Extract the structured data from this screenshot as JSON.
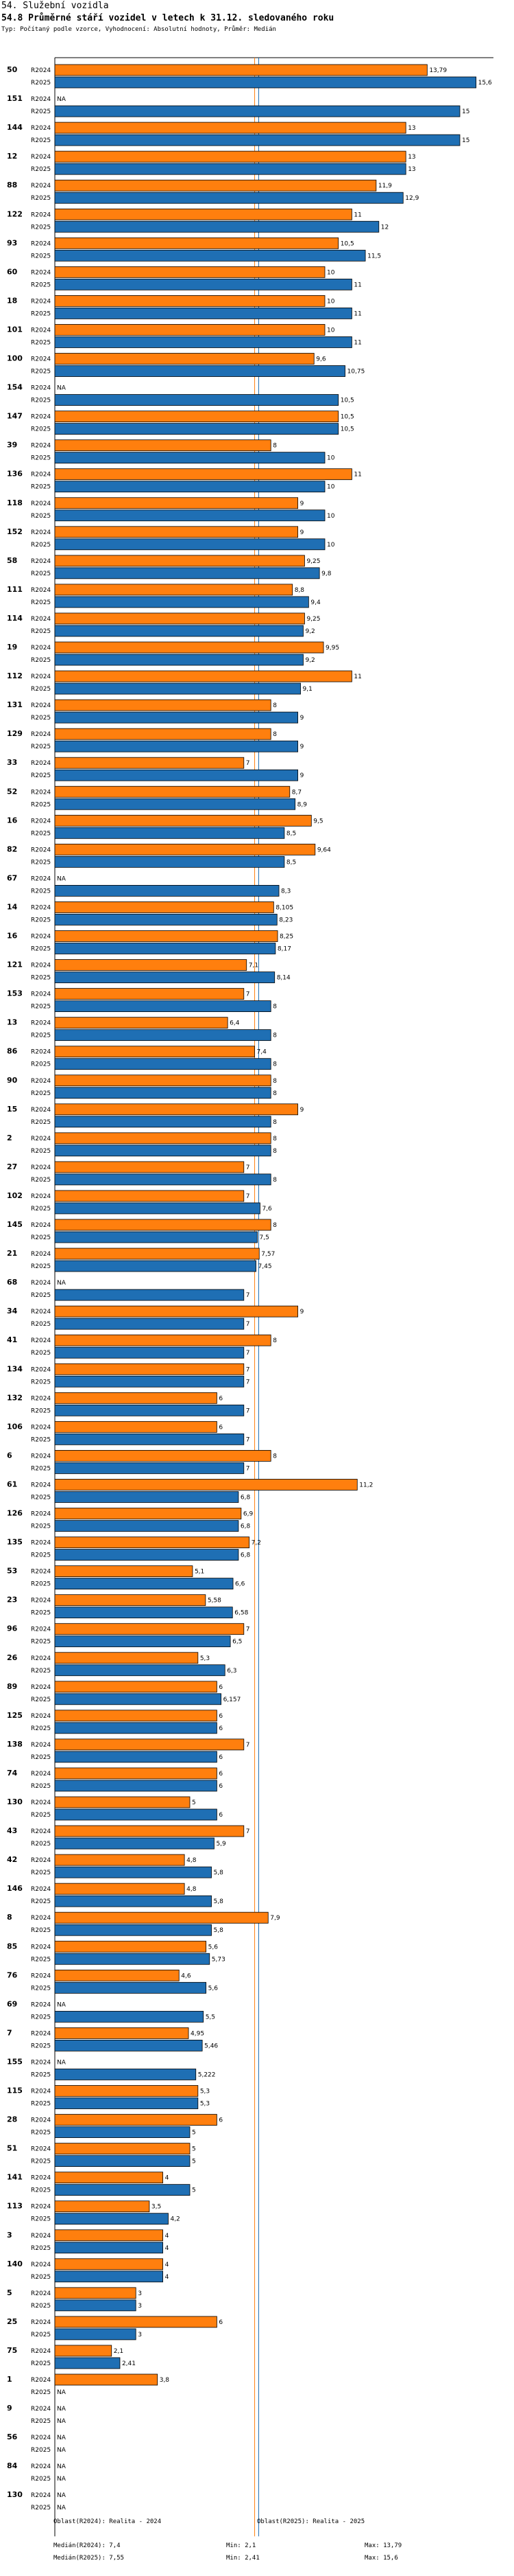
{
  "header": {
    "line1": "54. Služební vozidla",
    "line2": "54.8 Průměrné stáří vozidel v letech k 31.12. sledovaného roku",
    "line3": "Typ: Počítaný podle vzorce, Vyhodnocení: Absolutní hodnoty, Průměr: Medián"
  },
  "series_labels": {
    "a": "R2024",
    "b": "R2025"
  },
  "na_label": "NA",
  "colors": {
    "a": "#ff7f0e",
    "b": "#1f6fb4",
    "median_a": "#ff7f0e",
    "median_b": "#1f6fb4"
  },
  "chart_data": {
    "type": "bar",
    "orientation": "horizontal",
    "series": [
      {
        "name": "R2024"
      },
      {
        "name": "R2025"
      }
    ],
    "xlim": [
      0,
      16
    ],
    "medians": {
      "R2024": 7.4,
      "R2025": 7.55
    },
    "rows": [
      {
        "id": "50",
        "a": 13.79,
        "b": 15.6
      },
      {
        "id": "151",
        "a": null,
        "b": 15
      },
      {
        "id": "144",
        "a": 13,
        "b": 15
      },
      {
        "id": "12",
        "a": 13,
        "b": 13
      },
      {
        "id": "88",
        "a": 11.9,
        "b": 12.9
      },
      {
        "id": "122",
        "a": 11,
        "b": 12
      },
      {
        "id": "93",
        "a": 10.5,
        "b": 11.5
      },
      {
        "id": "60",
        "a": 10,
        "b": 11
      },
      {
        "id": "18",
        "a": 10,
        "b": 11
      },
      {
        "id": "101",
        "a": 10,
        "b": 11
      },
      {
        "id": "100",
        "a": 9.6,
        "b": 10.75
      },
      {
        "id": "154",
        "a": null,
        "b": 10.5
      },
      {
        "id": "147",
        "a": 10.5,
        "b": 10.5
      },
      {
        "id": "39",
        "a": 8,
        "b": 10
      },
      {
        "id": "136",
        "a": 11,
        "b": 10
      },
      {
        "id": "118",
        "a": 9,
        "b": 10
      },
      {
        "id": "152",
        "a": 9,
        "b": 10
      },
      {
        "id": "58",
        "a": 9.25,
        "b": 9.8
      },
      {
        "id": "111",
        "a": 8.8,
        "b": 9.4
      },
      {
        "id": "114",
        "a": 9.25,
        "b": 9.2
      },
      {
        "id": "19",
        "a": 9.95,
        "b": 9.2
      },
      {
        "id": "112",
        "a": 11,
        "b": 9.1
      },
      {
        "id": "131",
        "a": 8,
        "b": 9
      },
      {
        "id": "129",
        "a": 8,
        "b": 9
      },
      {
        "id": "33",
        "a": 7,
        "b": 9
      },
      {
        "id": "52",
        "a": 8.7,
        "b": 8.9
      },
      {
        "id": "16",
        "a": 9.5,
        "b": 8.5
      },
      {
        "id": "82",
        "a": 9.64,
        "b": 8.5
      },
      {
        "id": "67",
        "a": null,
        "b": 8.3
      },
      {
        "id": "14",
        "a": 8.105,
        "b": 8.23
      },
      {
        "id": "16",
        "a": 8.25,
        "b": 8.17
      },
      {
        "id": "121",
        "a": 7.1,
        "b": 8.14
      },
      {
        "id": "153",
        "a": 7,
        "b": 8
      },
      {
        "id": "13",
        "a": 6.4,
        "b": 8
      },
      {
        "id": "86",
        "a": 7.4,
        "b": 8
      },
      {
        "id": "90",
        "a": 8,
        "b": 8
      },
      {
        "id": "15",
        "a": 9,
        "b": 8
      },
      {
        "id": "2",
        "a": 8,
        "b": 8
      },
      {
        "id": "27",
        "a": 7,
        "b": 8
      },
      {
        "id": "102",
        "a": 7,
        "b": 7.6
      },
      {
        "id": "145",
        "a": 8,
        "b": 7.5
      },
      {
        "id": "21",
        "a": 7.57,
        "b": 7.45
      },
      {
        "id": "68",
        "a": null,
        "b": 7
      },
      {
        "id": "34",
        "a": 9,
        "b": 7
      },
      {
        "id": "41",
        "a": 8,
        "b": 7
      },
      {
        "id": "134",
        "a": 7,
        "b": 7
      },
      {
        "id": "132",
        "a": 6,
        "b": 7
      },
      {
        "id": "106",
        "a": 6,
        "b": 7
      },
      {
        "id": "6",
        "a": 8,
        "b": 7
      },
      {
        "id": "61",
        "a": 11.2,
        "b": 6.8
      },
      {
        "id": "126",
        "a": 6.9,
        "b": 6.8
      },
      {
        "id": "135",
        "a": 7.2,
        "b": 6.8
      },
      {
        "id": "53",
        "a": 5.1,
        "b": 6.6
      },
      {
        "id": "23",
        "a": 5.58,
        "b": 6.58
      },
      {
        "id": "96",
        "a": 7,
        "b": 6.5
      },
      {
        "id": "26",
        "a": 5.3,
        "b": 6.3
      },
      {
        "id": "89",
        "a": 6,
        "b": 6.157
      },
      {
        "id": "125",
        "a": 6,
        "b": 6
      },
      {
        "id": "138",
        "a": 7,
        "b": 6
      },
      {
        "id": "74",
        "a": 6,
        "b": 6
      },
      {
        "id": "130",
        "a": 5,
        "b": 6
      },
      {
        "id": "43",
        "a": 7,
        "b": 5.9
      },
      {
        "id": "42",
        "a": 4.8,
        "b": 5.8
      },
      {
        "id": "146",
        "a": 4.8,
        "b": 5.8
      },
      {
        "id": "8",
        "a": 7.9,
        "b": 5.8
      },
      {
        "id": "85",
        "a": 5.6,
        "b": 5.73
      },
      {
        "id": "76",
        "a": 4.6,
        "b": 5.6
      },
      {
        "id": "69",
        "a": null,
        "b": 5.5
      },
      {
        "id": "7",
        "a": 4.95,
        "b": 5.46
      },
      {
        "id": "155",
        "a": null,
        "b": 5.222
      },
      {
        "id": "115",
        "a": 5.3,
        "b": 5.3
      },
      {
        "id": "28",
        "a": 6,
        "b": 5
      },
      {
        "id": "51",
        "a": 5,
        "b": 5
      },
      {
        "id": "141",
        "a": 4,
        "b": 5
      },
      {
        "id": "113",
        "a": 3.5,
        "b": 4.2
      },
      {
        "id": "3",
        "a": 4,
        "b": 4
      },
      {
        "id": "140",
        "a": 4,
        "b": 4
      },
      {
        "id": "5",
        "a": 3,
        "b": 3
      },
      {
        "id": "25",
        "a": 6,
        "b": 3
      },
      {
        "id": "75",
        "a": 2.1,
        "b": 2.41
      },
      {
        "id": "1",
        "a": 3.8,
        "b": null
      },
      {
        "id": "9",
        "a": null,
        "b": null
      },
      {
        "id": "56",
        "a": null,
        "b": null
      },
      {
        "id": "84",
        "a": null,
        "b": null
      },
      {
        "id": "130",
        "a": null,
        "b": null
      }
    ]
  },
  "footer": {
    "left_a": "Medián(R2024): 7,4",
    "left_b": "Medián(R2025): 7,55",
    "legend_a": "Oblast(R2024): Realita - 2024",
    "legend_b": "Oblast(R2025): Realita - 2025",
    "min_a": "Min: 2,1",
    "min_b": "Min: 2,41",
    "max_a": "Max: 13,79",
    "max_b": "Max: 15,6"
  }
}
